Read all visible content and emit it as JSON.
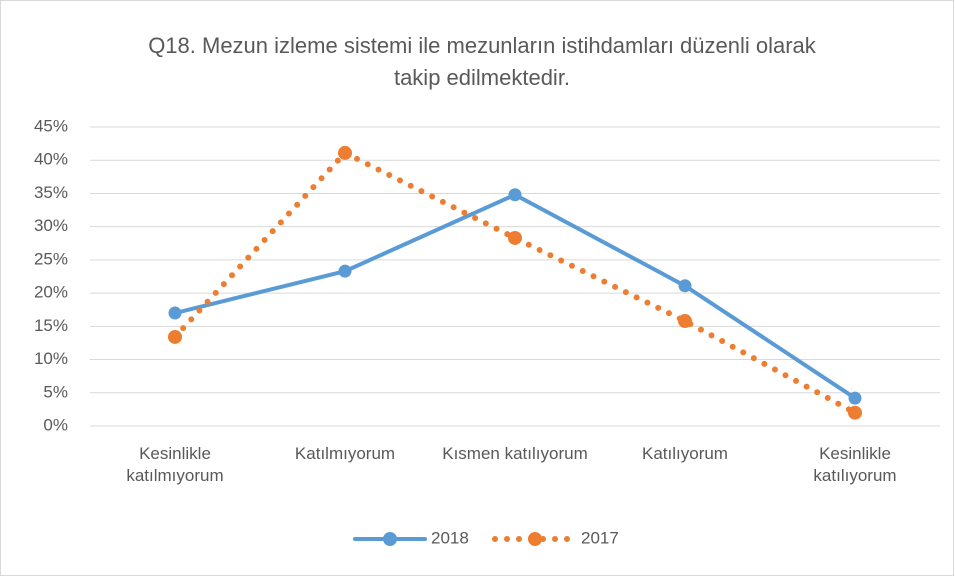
{
  "chart_data": {
    "type": "line",
    "title": "Q18. Mezun izleme sistemi ile mezunların istihdamları düzenli olarak takip edilmektedir.",
    "categories": [
      "Kesinlikle katılmıyorum",
      "Katılmıyorum",
      "Kısmen katılıyorum",
      "Katılıyorum",
      "Kesinlikle katılıyorum"
    ],
    "series": [
      {
        "name": "2018",
        "color": "#5b9bd5",
        "style": "solid",
        "values": [
          17.0,
          23.3,
          34.8,
          21.1,
          4.2
        ]
      },
      {
        "name": "2017",
        "color": "#ed7d31",
        "style": "dotted",
        "values": [
          13.4,
          41.1,
          28.3,
          15.8,
          2.0
        ]
      }
    ],
    "ylim": [
      0,
      45
    ],
    "yticks": [
      {
        "value": 0,
        "label": "0%"
      },
      {
        "value": 5,
        "label": "5%"
      },
      {
        "value": 10,
        "label": "10%"
      },
      {
        "value": 15,
        "label": "15%"
      },
      {
        "value": 20,
        "label": "20%"
      },
      {
        "value": 25,
        "label": "25%"
      },
      {
        "value": 30,
        "label": "30%"
      },
      {
        "value": 35,
        "label": "35%"
      },
      {
        "value": 40,
        "label": "40%"
      },
      {
        "value": 45,
        "label": "45%"
      }
    ],
    "grid": true,
    "legend": "bottom"
  }
}
